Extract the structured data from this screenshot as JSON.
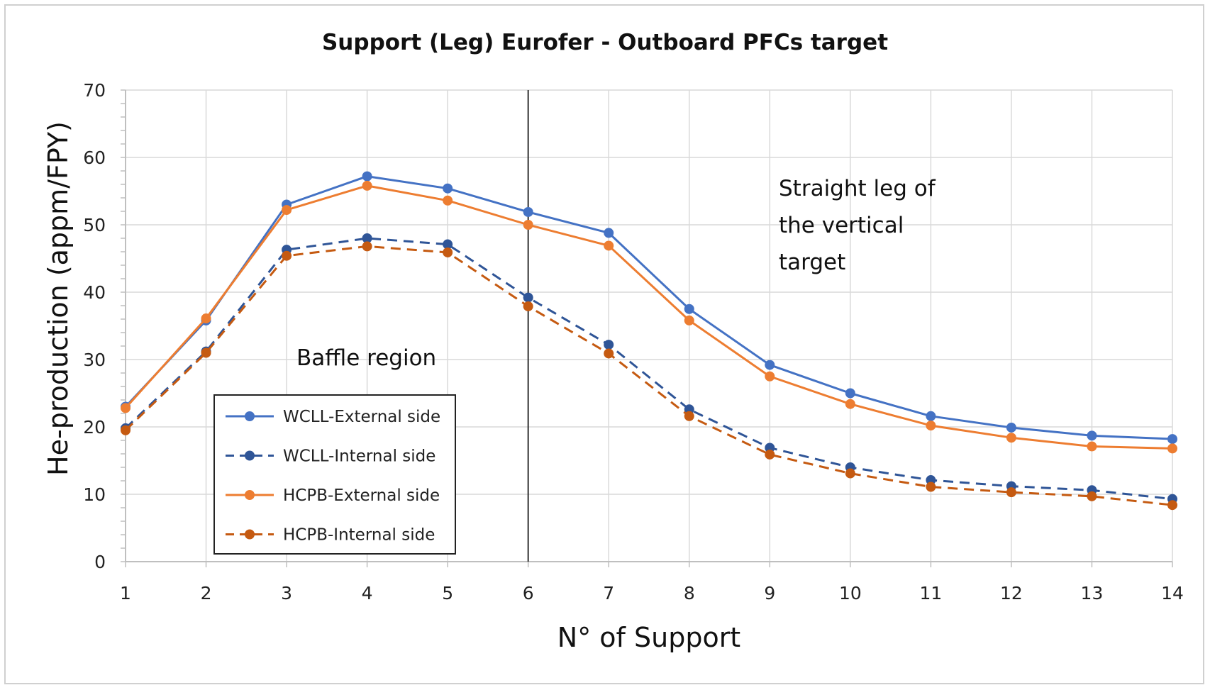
{
  "chart_data": {
    "type": "line",
    "title": "Support (Leg) Eurofer - Outboard PFCs target",
    "xlabel": "N° of Support",
    "ylabel": "He-production (appm/FPY)",
    "x": [
      1,
      2,
      3,
      4,
      5,
      6,
      7,
      8,
      9,
      10,
      11,
      12,
      13,
      14
    ],
    "xlim": [
      1,
      14
    ],
    "ylim": [
      0,
      70
    ],
    "yticks": [
      0,
      10,
      20,
      30,
      40,
      50,
      60,
      70
    ],
    "grid": true,
    "legend_position": "lower-left",
    "series": [
      {
        "name": "WCLL-External side",
        "style": "solid",
        "color": "#4472C4",
        "values": [
          23,
          35.8,
          53,
          57.2,
          55.4,
          51.9,
          48.8,
          37.5,
          29.2,
          25,
          21.6,
          19.9,
          18.7,
          18.2
        ]
      },
      {
        "name": "WCLL-Internal side",
        "style": "dashed",
        "color": "#2F5597",
        "values": [
          19.8,
          31.2,
          46.3,
          48,
          47.1,
          39.2,
          32.2,
          22.6,
          16.9,
          14,
          12.1,
          11.2,
          10.6,
          9.3
        ]
      },
      {
        "name": "HCPB-External side",
        "style": "solid",
        "color": "#ED7D31",
        "values": [
          22.8,
          36.1,
          52.2,
          55.8,
          53.6,
          50,
          46.9,
          35.8,
          27.5,
          23.4,
          20.2,
          18.4,
          17.1,
          16.8
        ]
      },
      {
        "name": "HCPB-Internal side",
        "style": "dashed",
        "color": "#C55A11",
        "values": [
          19.5,
          31,
          45.4,
          46.8,
          45.9,
          37.9,
          30.9,
          21.6,
          15.9,
          13.1,
          11.1,
          10.3,
          9.7,
          8.4
        ]
      }
    ],
    "divider_at_x": 6,
    "annotations": {
      "baffle": "Baffle region",
      "straight_leg": [
        "Straight leg of",
        "the vertical",
        "target"
      ]
    }
  }
}
